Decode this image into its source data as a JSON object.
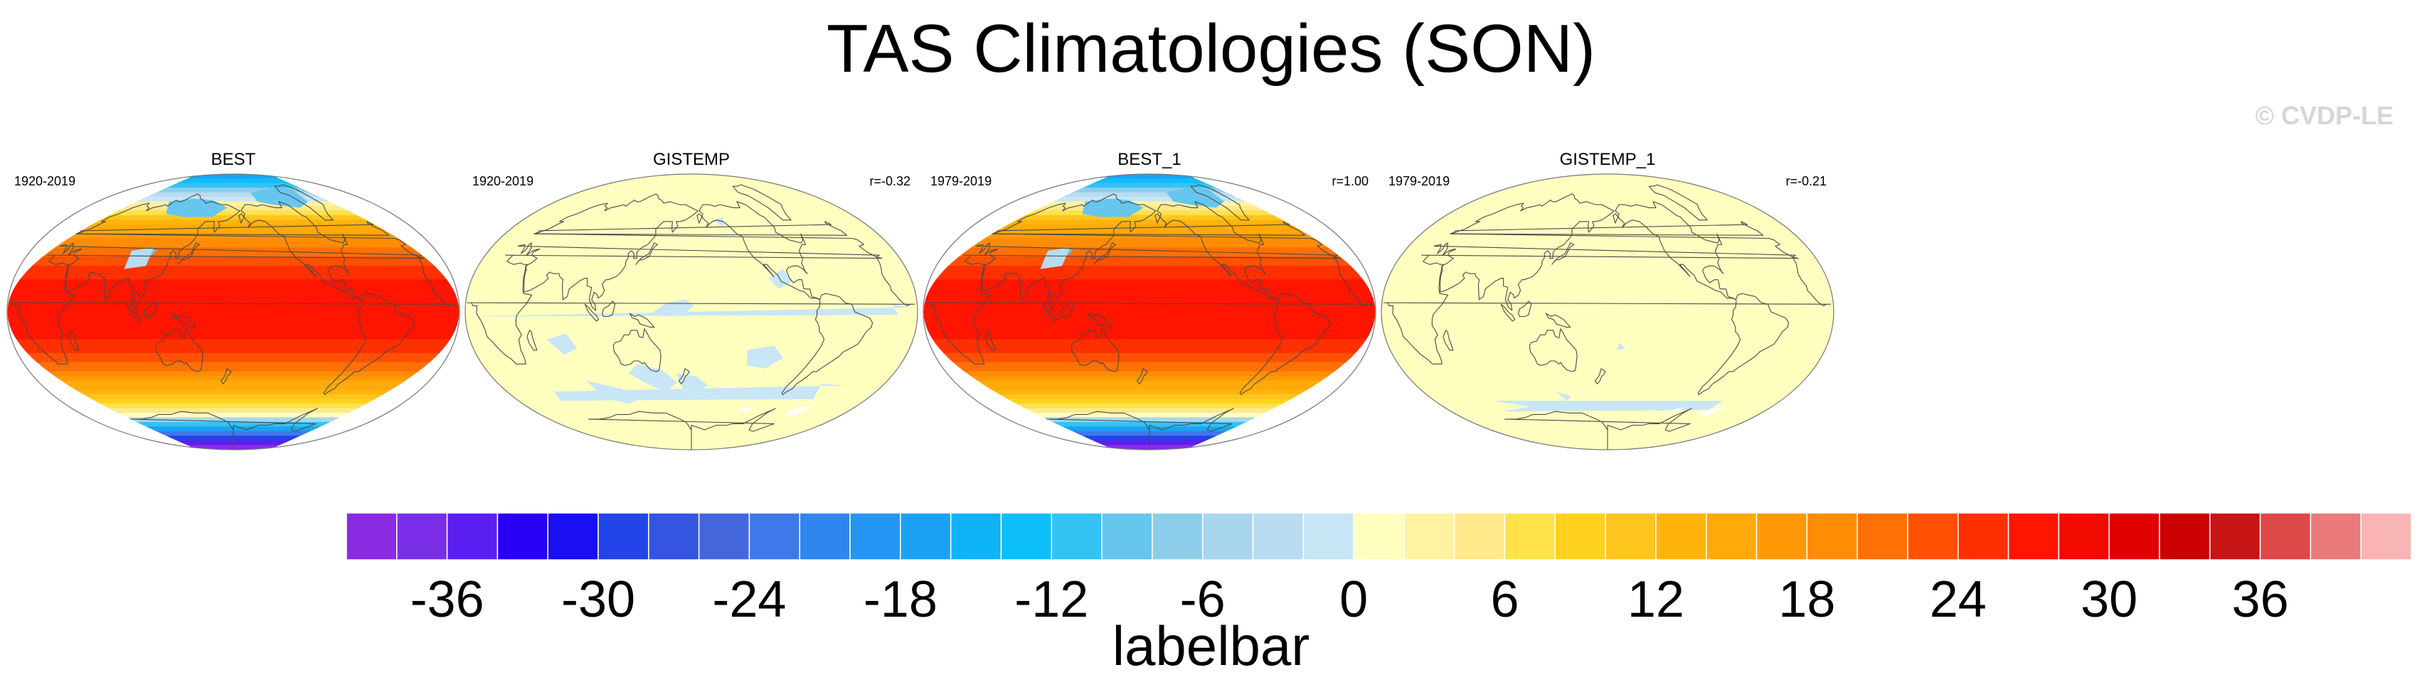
{
  "figure": {
    "title": "TAS Climatologies (SON)",
    "watermark": "© CVDP-LE"
  },
  "panels": [
    {
      "title": "BEST",
      "period": "1920-2019",
      "corr": "",
      "field": "absolute"
    },
    {
      "title": "GISTEMP",
      "period": "1920-2019",
      "corr": "r=-0.32",
      "field": "anomaly"
    },
    {
      "title": "BEST_1",
      "period": "1979-2019",
      "corr": "r=1.00",
      "field": "absolute"
    },
    {
      "title": "GISTEMP_1",
      "period": "1979-2019",
      "corr": "r=-0.21",
      "field": "anomaly2"
    }
  ],
  "chart_data": {
    "type": "heatmap",
    "title": "TAS Climatologies (SON)",
    "colorbar": {
      "label": "labelbar",
      "levels": [
        -40,
        -38,
        -36,
        -34,
        -32,
        -30,
        -28,
        -26,
        -24,
        -22,
        -20,
        -18,
        -16,
        -14,
        -12,
        -10,
        -8,
        -6,
        -4,
        -2,
        0,
        2,
        4,
        6,
        8,
        10,
        12,
        14,
        16,
        18,
        20,
        22,
        24,
        26,
        28,
        30,
        32,
        34,
        36,
        38,
        40,
        42
      ],
      "tick_values": [
        -36,
        -30,
        -24,
        -18,
        -12,
        -6,
        0,
        6,
        12,
        18,
        24,
        30,
        36
      ],
      "tick_labels": [
        "-36",
        "-30",
        "-24",
        "-18",
        "-12",
        "-6",
        "0",
        "6",
        "12",
        "18",
        "24",
        "30",
        "36"
      ],
      "colors": [
        "#8a2be2",
        "#7b2ee8",
        "#5a1ff0",
        "#2a00f5",
        "#1a0ff0",
        "#2244e8",
        "#3355e0",
        "#4466dd",
        "#3f78e8",
        "#2f86ee",
        "#2495f2",
        "#1ba2f5",
        "#0fb3f7",
        "#0ebef8",
        "#33c3f2",
        "#66c6ee",
        "#8ccdea",
        "#a8d6ee",
        "#b8dcf0",
        "#c8e6f5",
        "#ffffc0",
        "#fff2a0",
        "#ffe98a",
        "#ffe24a",
        "#ffd21f",
        "#ffc51f",
        "#ffb40c",
        "#ffaa08",
        "#ff9a06",
        "#ff8c05",
        "#ff7005",
        "#ff5003",
        "#ff3000",
        "#ff1500",
        "#f20900",
        "#e00000",
        "#cc0000",
        "#c81414",
        "#dd4848",
        "#eb7a7a",
        "#f9b4b4"
      ]
    },
    "series": [
      {
        "name": "BEST",
        "period": "1920-2019"
      },
      {
        "name": "GISTEMP",
        "period": "1920-2019",
        "r": -0.32
      },
      {
        "name": "BEST_1",
        "period": "1979-2019",
        "r": 1.0
      },
      {
        "name": "GISTEMP_1",
        "period": "1979-2019",
        "r": -0.21
      }
    ]
  }
}
